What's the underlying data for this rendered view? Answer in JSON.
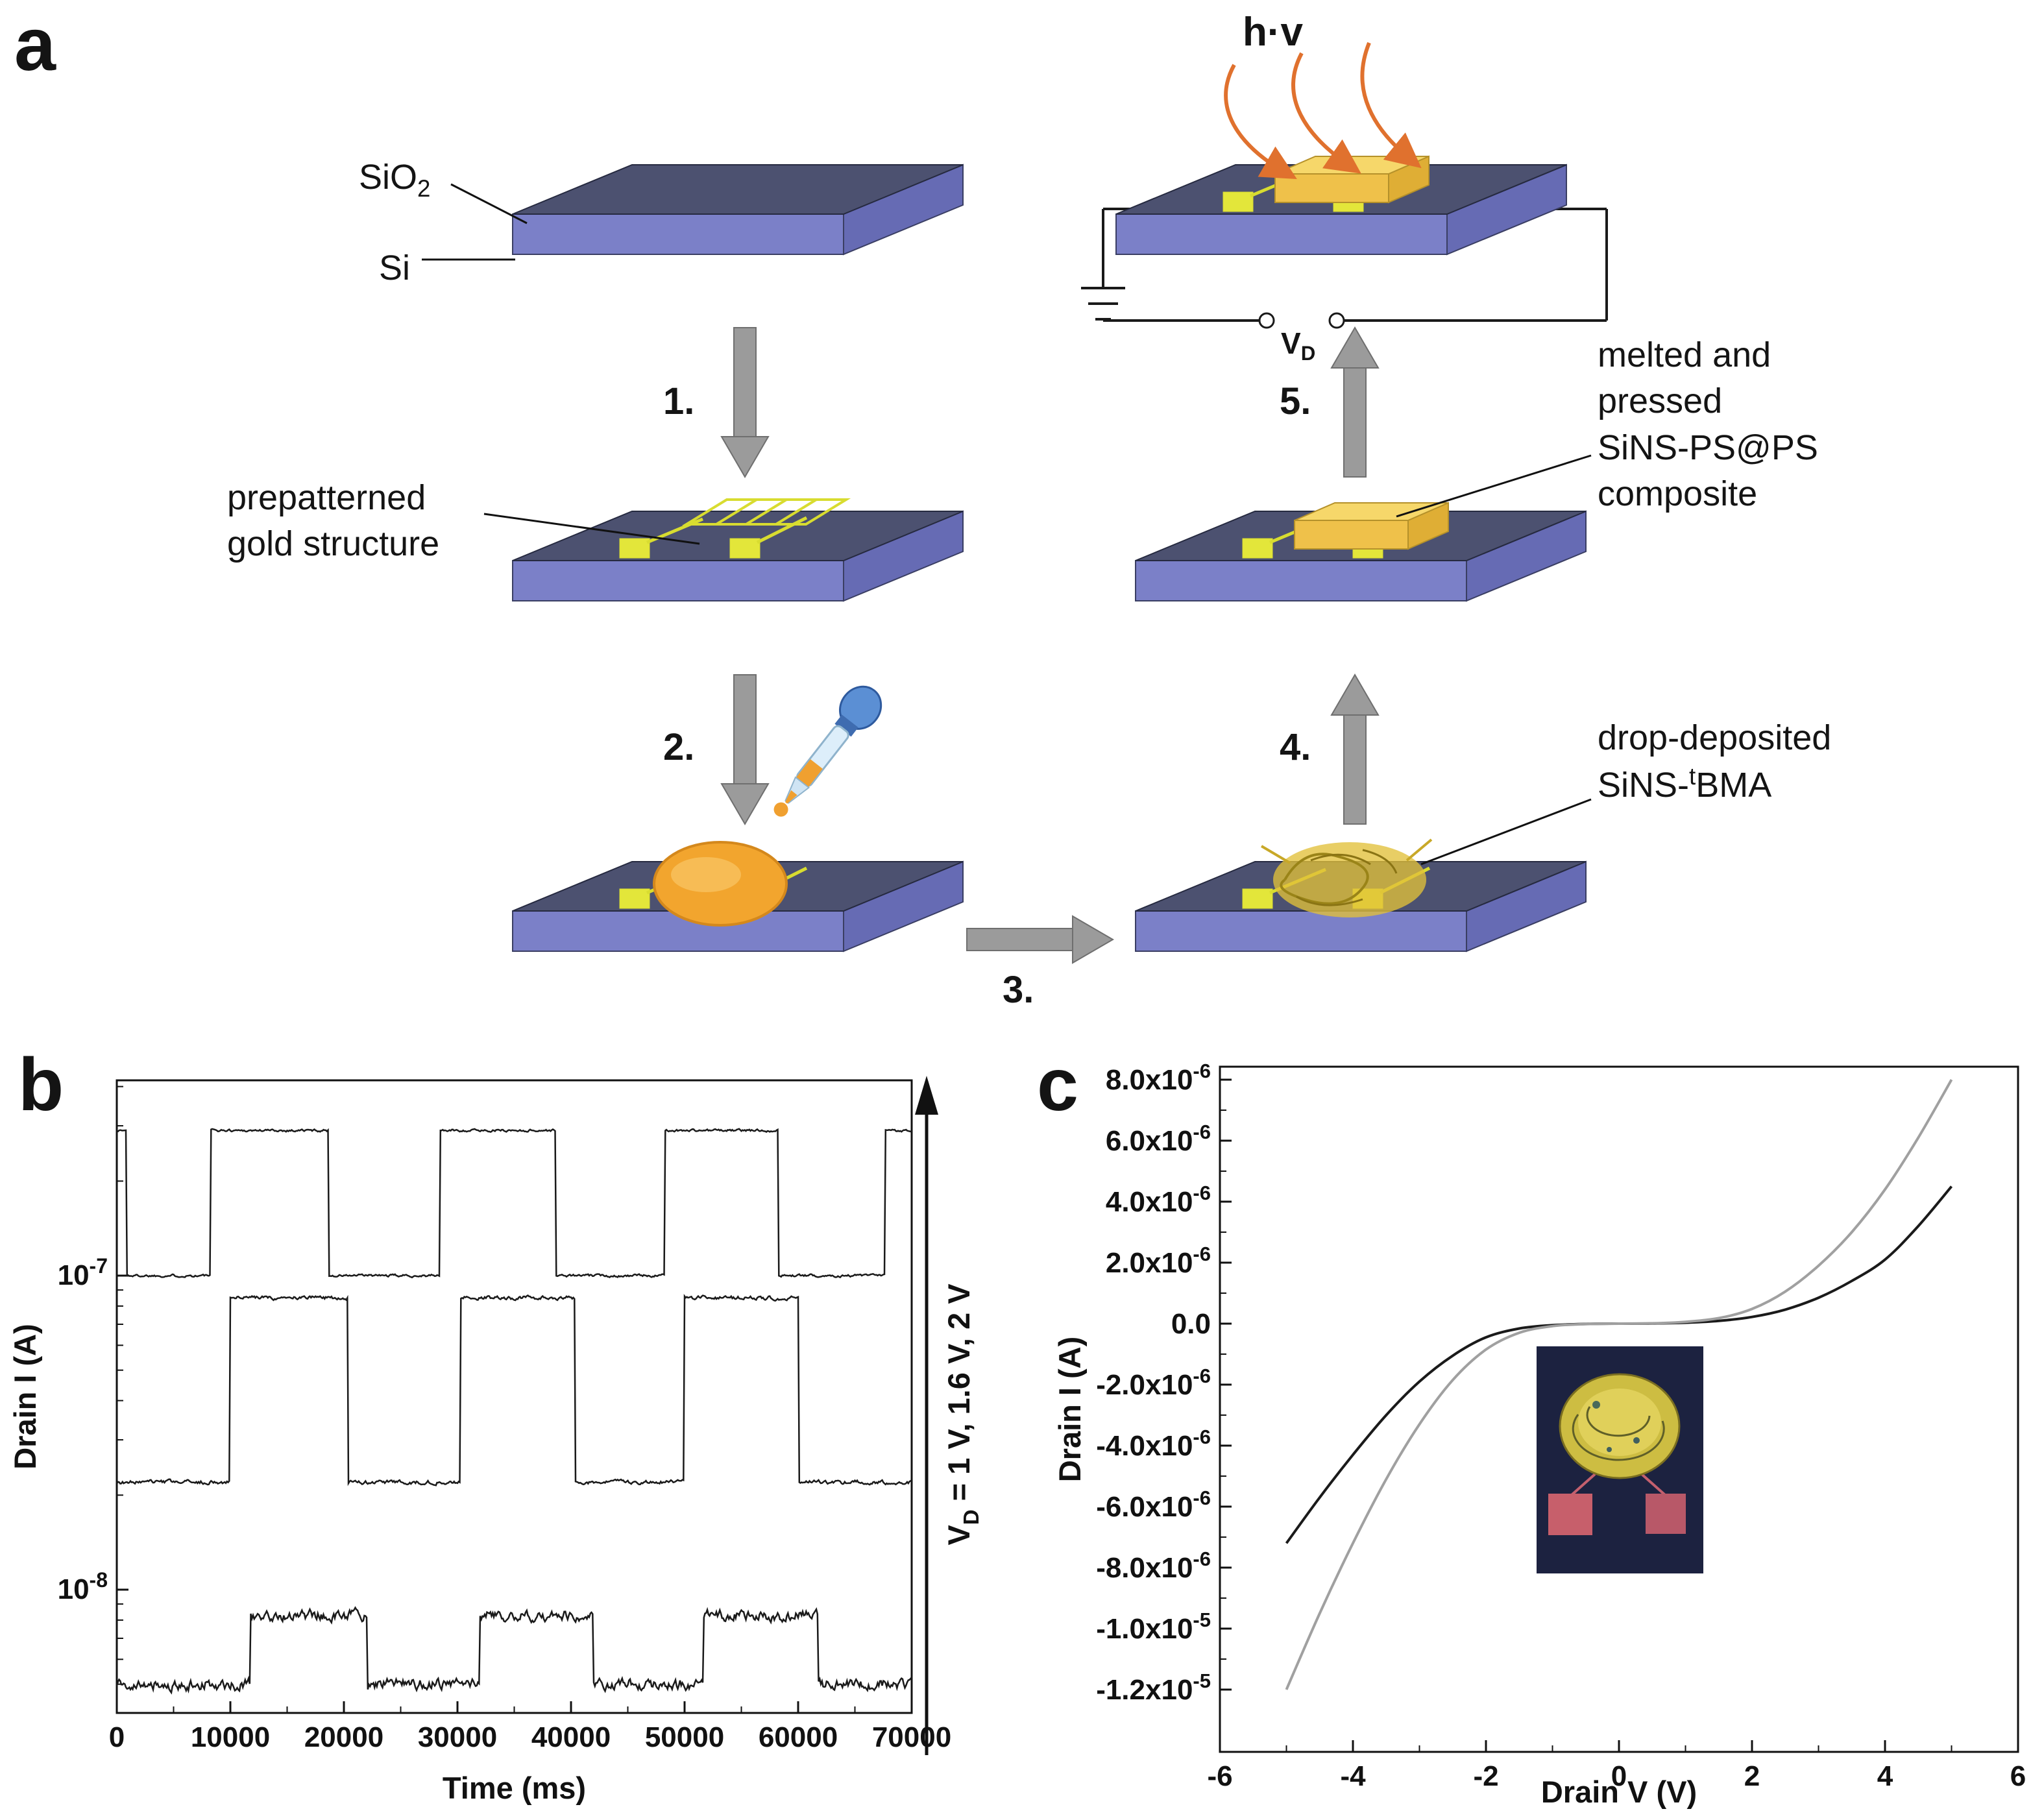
{
  "figure": {
    "panel_a_letter": "a",
    "panel_b_letter": "b",
    "panel_c_letter": "c"
  },
  "panel_a": {
    "labels": {
      "sio2_main": "SiO",
      "sio2_sub": "2",
      "si": "Si",
      "prepatterned_line1": "prepatterned",
      "prepatterned_line2": "gold structure",
      "steps": [
        "1.",
        "2.",
        "3.",
        "4.",
        "5."
      ],
      "hv": "h·v",
      "vd_main": "V",
      "vd_sub": "D",
      "melted_line1": "melted and",
      "melted_line2": "pressed",
      "melted_line3": "SiNS-PS@PS",
      "melted_line4": "composite",
      "drop_line1": "drop-deposited",
      "drop_pre": "SiNS-",
      "drop_sup": "t",
      "drop_post": "BMA"
    }
  },
  "chart_data": [
    {
      "panel": "b",
      "type": "line",
      "title": "",
      "xlabel": "Time (ms)",
      "ylabel": "Drain I (A)",
      "xlim": [
        0,
        70000
      ],
      "xticks": [
        0,
        10000,
        20000,
        30000,
        40000,
        50000,
        60000,
        70000
      ],
      "yscale": "log",
      "ylim": [
        4.2e-09,
        4.3e-07
      ],
      "ytick_values": [
        1e-07,
        1e-08
      ],
      "ytick_labels": [
        {
          "base": "10",
          "exp": "-7"
        },
        {
          "base": "10",
          "exp": "-8"
        }
      ],
      "right_axis_label": {
        "pre": "V",
        "sub": "D",
        "post": " = 1 V, 1.6 V, 2 V"
      },
      "grid": false,
      "series": [
        {
          "name": "VD = 2 V",
          "off_level": 1e-07,
          "on_level": 2.9e-07,
          "on_intervals": [
            [
              0,
              800
            ],
            [
              8300,
              18600
            ],
            [
              28500,
              38600
            ],
            [
              48300,
              58200
            ],
            [
              67700,
              70000
            ]
          ],
          "noise": 0.008
        },
        {
          "name": "VD = 1.6 V",
          "off_level": 2.2e-08,
          "on_level": 8.5e-08,
          "on_intervals": [
            [
              10000,
              20300
            ],
            [
              30300,
              40300
            ],
            [
              50000,
              60000
            ]
          ],
          "noise": 0.012
        },
        {
          "name": "VD = 1 V",
          "off_level": 5e-09,
          "on_level": 8.3e-09,
          "on_intervals": [
            [
              11800,
              22000
            ],
            [
              32000,
              41900
            ],
            [
              51700,
              61700
            ]
          ],
          "noise": 0.035
        }
      ]
    },
    {
      "panel": "c",
      "type": "line",
      "title": "",
      "xlabel": "Drain V (V)",
      "ylabel": "Drain I (A)",
      "xlim": [
        -6,
        6
      ],
      "xticks": [
        -6,
        -4,
        -2,
        0,
        2,
        4,
        6
      ],
      "ylim": [
        -1.32e-05,
        8.8e-06
      ],
      "ytick_values": [
        8e-06,
        6e-06,
        4e-06,
        2e-06,
        0,
        -2e-06,
        -4e-06,
        -6e-06,
        -8e-06,
        -1e-05,
        -1.2e-05
      ],
      "ytick_labels": [
        {
          "mant": "8.0x10",
          "exp": "-6"
        },
        {
          "mant": "6.0x10",
          "exp": "-6"
        },
        {
          "mant": "4.0x10",
          "exp": "-6"
        },
        {
          "mant": "2.0x10",
          "exp": "-6"
        },
        {
          "mant": "0.0",
          "exp": ""
        },
        {
          "mant": "-2.0x10",
          "exp": "-6"
        },
        {
          "mant": "-4.0x10",
          "exp": "-6"
        },
        {
          "mant": "-6.0x10",
          "exp": "-6"
        },
        {
          "mant": "-8.0x10",
          "exp": "-6"
        },
        {
          "mant": "-1.0x10",
          "exp": "-5"
        },
        {
          "mant": "-1.2x10",
          "exp": "-5"
        }
      ],
      "grid": false,
      "series": [
        {
          "name": "dark-iv-curve",
          "color": "#1a1a1a",
          "points": [
            [
              -5,
              -7.2e-06
            ],
            [
              -4.5,
              -5.7e-06
            ],
            [
              -4,
              -4.3e-06
            ],
            [
              -3.5,
              -3e-06
            ],
            [
              -3,
              -1.9e-06
            ],
            [
              -2.5,
              -1.05e-06
            ],
            [
              -2,
              -4.5e-07
            ],
            [
              -1.5,
              -1.6e-07
            ],
            [
              -1,
              -5e-08
            ],
            [
              -0.5,
              -1e-08
            ],
            [
              0,
              0
            ],
            [
              0.5,
              5e-09
            ],
            [
              1,
              3e-08
            ],
            [
              1.5,
              9e-08
            ],
            [
              2,
              2.2e-07
            ],
            [
              2.5,
              4.6e-07
            ],
            [
              3,
              8.5e-07
            ],
            [
              3.5,
              1.4e-06
            ],
            [
              4,
              2.1e-06
            ],
            [
              4.5,
              3.2e-06
            ],
            [
              5,
              4.5e-06
            ]
          ]
        },
        {
          "name": "gray-iv-curve",
          "color": "#a0a0a0",
          "points": [
            [
              -5,
              -1.2e-05
            ],
            [
              -4.5,
              -9.5e-06
            ],
            [
              -4,
              -7.2e-06
            ],
            [
              -3.5,
              -5.1e-06
            ],
            [
              -3,
              -3.3e-06
            ],
            [
              -2.5,
              -1.85e-06
            ],
            [
              -2,
              -8.5e-07
            ],
            [
              -1.5,
              -3e-07
            ],
            [
              -1,
              -8e-08
            ],
            [
              -0.5,
              -1.5e-08
            ],
            [
              0,
              0
            ],
            [
              0.5,
              1e-08
            ],
            [
              1,
              6e-08
            ],
            [
              1.5,
              1.8e-07
            ],
            [
              2,
              4.8e-07
            ],
            [
              2.5,
              1.05e-06
            ],
            [
              3,
              1.9e-06
            ],
            [
              3.5,
              3e-06
            ],
            [
              4,
              4.4e-06
            ],
            [
              4.5,
              6.1e-06
            ],
            [
              5,
              8e-06
            ]
          ]
        }
      ]
    }
  ]
}
